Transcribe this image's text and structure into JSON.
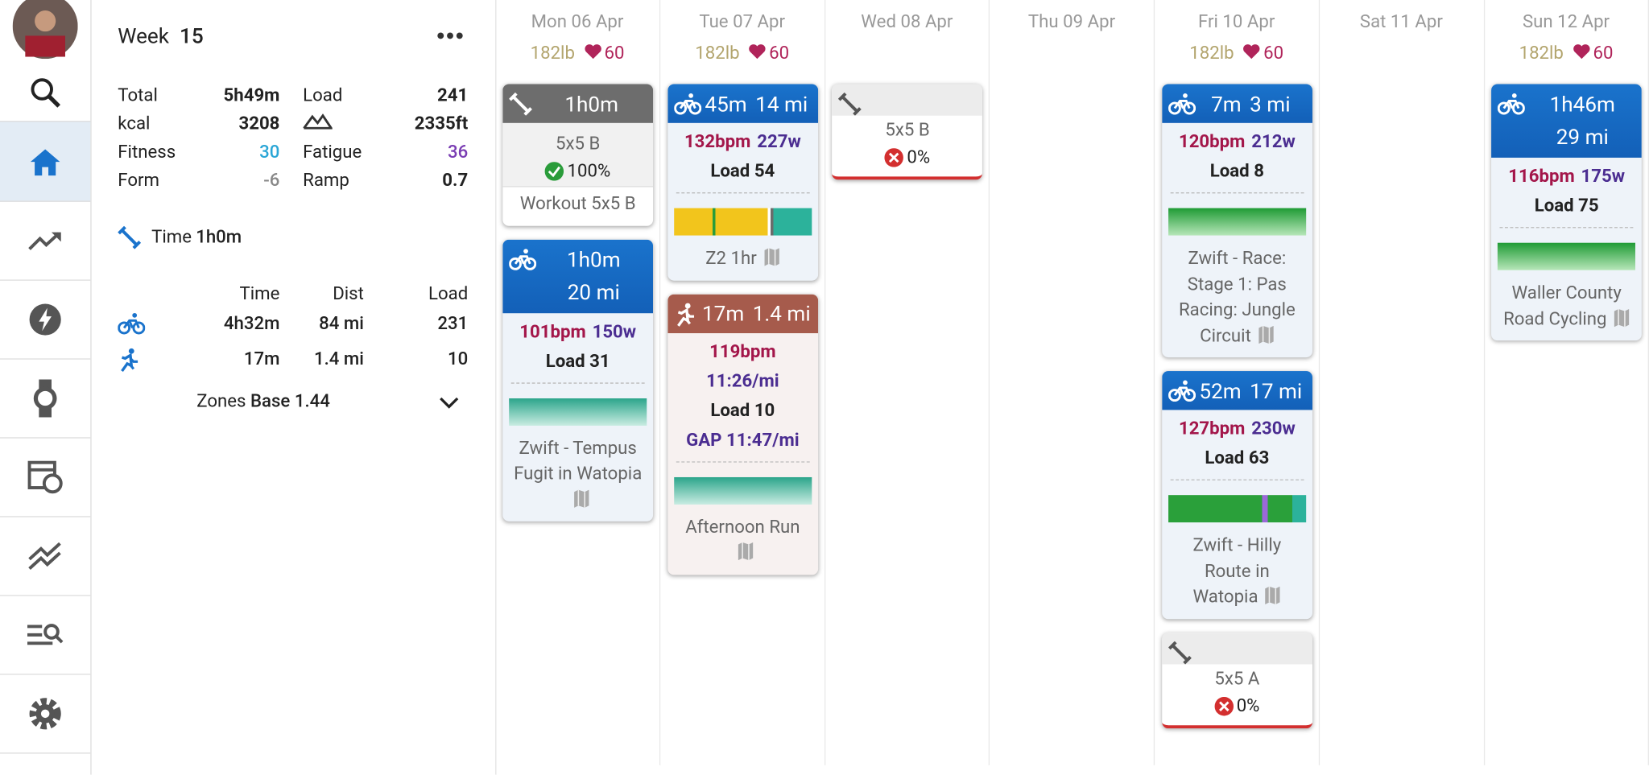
{
  "week": {
    "label": "Week",
    "number": "15",
    "stats": [
      {
        "label": "Total",
        "value": "5h49m"
      },
      {
        "label": "Load",
        "value": "241"
      },
      {
        "label": "kcal",
        "value": "3208"
      },
      {
        "icon": "elevation",
        "value": "2335ft"
      },
      {
        "label": "Fitness",
        "value": "30",
        "color": "#2aa6d6"
      },
      {
        "label": "Fatigue",
        "value": "36",
        "color": "#7a3db3"
      },
      {
        "label": "Form",
        "value": "-6",
        "color": "#888"
      },
      {
        "label": "Ramp",
        "value": "0.7"
      }
    ],
    "strength": {
      "label": "Time",
      "value": "1h0m"
    },
    "table": {
      "header": [
        "Time",
        "Dist",
        "Load"
      ],
      "rows": [
        {
          "sport": "ride",
          "cells": [
            "4h32m",
            "84 mi",
            "231"
          ]
        },
        {
          "sport": "run",
          "cells": [
            "17m",
            "1.4 mi",
            "10"
          ]
        }
      ]
    },
    "zones": {
      "label": "Zones",
      "value": "Base 1.44"
    }
  },
  "days": [
    {
      "date": "Mon 06 Apr",
      "weight": "182lb",
      "hr": "60",
      "cards": [
        {
          "kind": "strength",
          "head": [
            "1h0m"
          ],
          "lines": [
            [
              {
                "t": "5x5 B"
              }
            ]
          ],
          "status": {
            "ok": true,
            "text": "100%"
          },
          "name": "Workout 5x5 B"
        },
        {
          "kind": "ride",
          "head": [
            "1h0m",
            "20 mi"
          ],
          "wrap": true,
          "lines": [
            [
              {
                "t": "101bpm",
                "c": "hr"
              },
              {
                "t": "150w",
                "c": "pw"
              }
            ],
            [
              {
                "t": "Load 31"
              }
            ]
          ],
          "chart": "teal",
          "name": "Zwift - Tempus Fugit in Watopia",
          "map": true
        }
      ]
    },
    {
      "date": "Tue 07 Apr",
      "weight": "182lb",
      "hr": "60",
      "cards": [
        {
          "kind": "ride",
          "head": [
            "45m",
            "14 mi"
          ],
          "lines": [
            [
              {
                "t": "132bpm",
                "c": "hr"
              },
              {
                "t": "227w",
                "c": "pw"
              }
            ],
            [
              {
                "t": "Load 54"
              }
            ]
          ],
          "chart": "yellow",
          "name": "Z2 1hr",
          "map": true
        },
        {
          "kind": "run",
          "head": [
            "17m",
            "1.4 mi"
          ],
          "lines": [
            [
              {
                "t": "119bpm",
                "c": "hr"
              }
            ],
            [
              {
                "t": "11:26/mi",
                "c": "pw"
              }
            ],
            [
              {
                "t": "Load 10"
              }
            ],
            [
              {
                "t": "GAP 11:47/mi",
                "c": "pw"
              }
            ]
          ],
          "chart": "teal",
          "name": "Afternoon Run",
          "map": true
        }
      ]
    },
    {
      "date": "Wed 08 Apr",
      "cards": [
        {
          "kind": "strength",
          "head": [],
          "lines": [
            [
              {
                "t": "5x5 B"
              }
            ]
          ],
          "status": {
            "ok": false,
            "text": "0%"
          }
        }
      ]
    },
    {
      "date": "Thu 09 Apr",
      "cards": []
    },
    {
      "date": "Fri 10 Apr",
      "weight": "182lb",
      "hr": "60",
      "cards": [
        {
          "kind": "ride",
          "head": [
            "7m",
            "3 mi"
          ],
          "lines": [
            [
              {
                "t": "120bpm",
                "c": "hr"
              },
              {
                "t": "212w",
                "c": "pw"
              }
            ],
            [
              {
                "t": "Load 8"
              }
            ]
          ],
          "chart": "green",
          "name": "Zwift - Race: Stage 1: Pas Racing: Jungle Circuit",
          "map": true
        },
        {
          "kind": "ride",
          "head": [
            "52m",
            "17 mi"
          ],
          "lines": [
            [
              {
                "t": "127bpm",
                "c": "hr"
              },
              {
                "t": "230w",
                "c": "pw"
              }
            ],
            [
              {
                "t": "Load 63"
              }
            ]
          ],
          "chart": "bars",
          "name": "Zwift - Hilly Route in Watopia",
          "map": true
        },
        {
          "kind": "strength",
          "head": [],
          "lines": [
            [
              {
                "t": "5x5 A"
              }
            ]
          ],
          "status": {
            "ok": false,
            "text": "0%"
          }
        }
      ]
    },
    {
      "date": "Sat 11 Apr",
      "cards": []
    },
    {
      "date": "Sun 12 Apr",
      "weight": "182lb",
      "hr": "60",
      "cards": [
        {
          "kind": "ride",
          "head": [
            "1h46m",
            "29 mi"
          ],
          "wrap": true,
          "lines": [
            [
              {
                "t": "116bpm",
                "c": "hr"
              },
              {
                "t": "175w",
                "c": "pw"
              }
            ],
            [
              {
                "t": "Load 75"
              }
            ]
          ],
          "chart": "green",
          "name": "Waller County Road Cycling",
          "map": true
        }
      ]
    }
  ]
}
